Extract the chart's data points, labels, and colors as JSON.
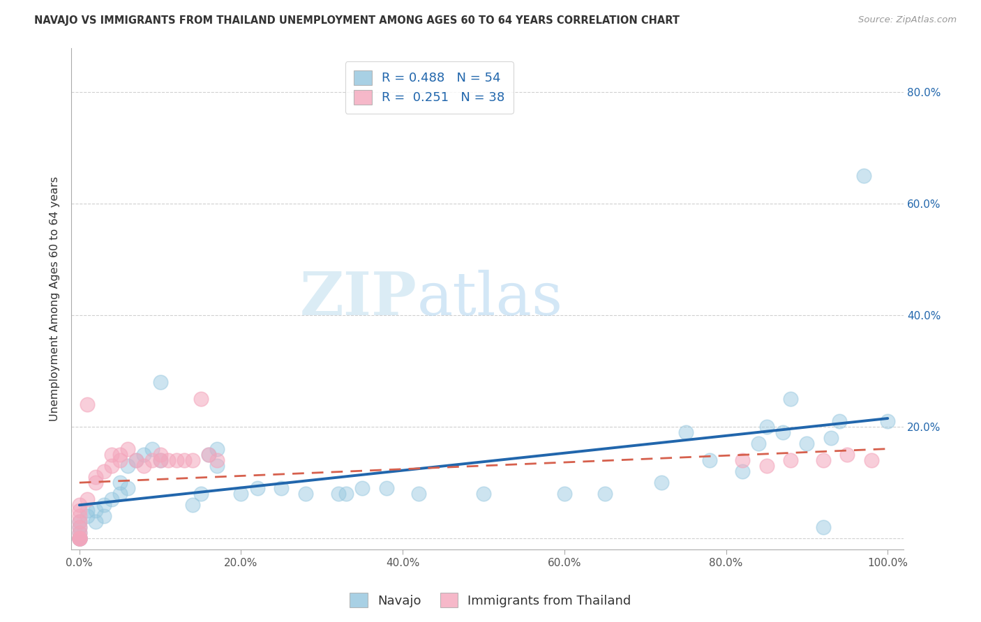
{
  "title": "NAVAJO VS IMMIGRANTS FROM THAILAND UNEMPLOYMENT AMONG AGES 60 TO 64 YEARS CORRELATION CHART",
  "source": "Source: ZipAtlas.com",
  "ylabel": "Unemployment Among Ages 60 to 64 years",
  "xlim": [
    -0.01,
    1.02
  ],
  "ylim": [
    -0.02,
    0.88
  ],
  "xticks": [
    0.0,
    0.2,
    0.4,
    0.6,
    0.8,
    1.0
  ],
  "xticklabels": [
    "0.0%",
    "20.0%",
    "40.0%",
    "60.0%",
    "80.0%",
    "100.0%"
  ],
  "yticks": [
    0.0,
    0.2,
    0.4,
    0.6,
    0.8
  ],
  "yticklabels": [
    "",
    "20.0%",
    "40.0%",
    "60.0%",
    "80.0%"
  ],
  "navajo_color": "#92c5de",
  "thailand_color": "#f4a6bc",
  "navajo_R": 0.488,
  "navajo_N": 54,
  "thailand_R": 0.251,
  "thailand_N": 38,
  "navajo_x": [
    0.0,
    0.0,
    0.0,
    0.0,
    0.0,
    0.0,
    0.0,
    0.01,
    0.01,
    0.02,
    0.02,
    0.03,
    0.03,
    0.04,
    0.05,
    0.05,
    0.06,
    0.06,
    0.07,
    0.08,
    0.09,
    0.1,
    0.1,
    0.14,
    0.15,
    0.16,
    0.17,
    0.17,
    0.2,
    0.22,
    0.25,
    0.28,
    0.32,
    0.33,
    0.35,
    0.38,
    0.42,
    0.5,
    0.6,
    0.65,
    0.72,
    0.75,
    0.78,
    0.82,
    0.84,
    0.85,
    0.87,
    0.88,
    0.9,
    0.92,
    0.93,
    0.94,
    0.97,
    1.0
  ],
  "navajo_y": [
    0.0,
    0.0,
    0.0,
    0.0,
    0.01,
    0.02,
    0.03,
    0.04,
    0.05,
    0.03,
    0.05,
    0.04,
    0.06,
    0.07,
    0.08,
    0.1,
    0.09,
    0.13,
    0.14,
    0.15,
    0.16,
    0.14,
    0.28,
    0.06,
    0.08,
    0.15,
    0.13,
    0.16,
    0.08,
    0.09,
    0.09,
    0.08,
    0.08,
    0.08,
    0.09,
    0.09,
    0.08,
    0.08,
    0.08,
    0.08,
    0.1,
    0.19,
    0.14,
    0.12,
    0.17,
    0.2,
    0.19,
    0.25,
    0.17,
    0.02,
    0.18,
    0.21,
    0.65,
    0.21
  ],
  "thailand_x": [
    0.0,
    0.0,
    0.0,
    0.0,
    0.0,
    0.0,
    0.0,
    0.0,
    0.0,
    0.0,
    0.01,
    0.01,
    0.02,
    0.02,
    0.03,
    0.04,
    0.04,
    0.05,
    0.05,
    0.06,
    0.07,
    0.08,
    0.09,
    0.1,
    0.1,
    0.11,
    0.12,
    0.13,
    0.14,
    0.15,
    0.16,
    0.17,
    0.82,
    0.85,
    0.88,
    0.92,
    0.95,
    0.98
  ],
  "thailand_y": [
    0.0,
    0.0,
    0.0,
    0.0,
    0.01,
    0.02,
    0.03,
    0.04,
    0.05,
    0.06,
    0.07,
    0.24,
    0.1,
    0.11,
    0.12,
    0.13,
    0.15,
    0.14,
    0.15,
    0.16,
    0.14,
    0.13,
    0.14,
    0.14,
    0.15,
    0.14,
    0.14,
    0.14,
    0.14,
    0.25,
    0.15,
    0.14,
    0.14,
    0.13,
    0.14,
    0.14,
    0.15,
    0.14
  ],
  "watermark_ZIP": "ZIP",
  "watermark_atlas": "atlas",
  "legend_navajo_label": "Navajo",
  "legend_thailand_label": "Immigrants from Thailand",
  "background_color": "#ffffff",
  "grid_color": "#d0d0d0",
  "regression_blue": "#2166ac",
  "regression_pink": "#d6604d"
}
